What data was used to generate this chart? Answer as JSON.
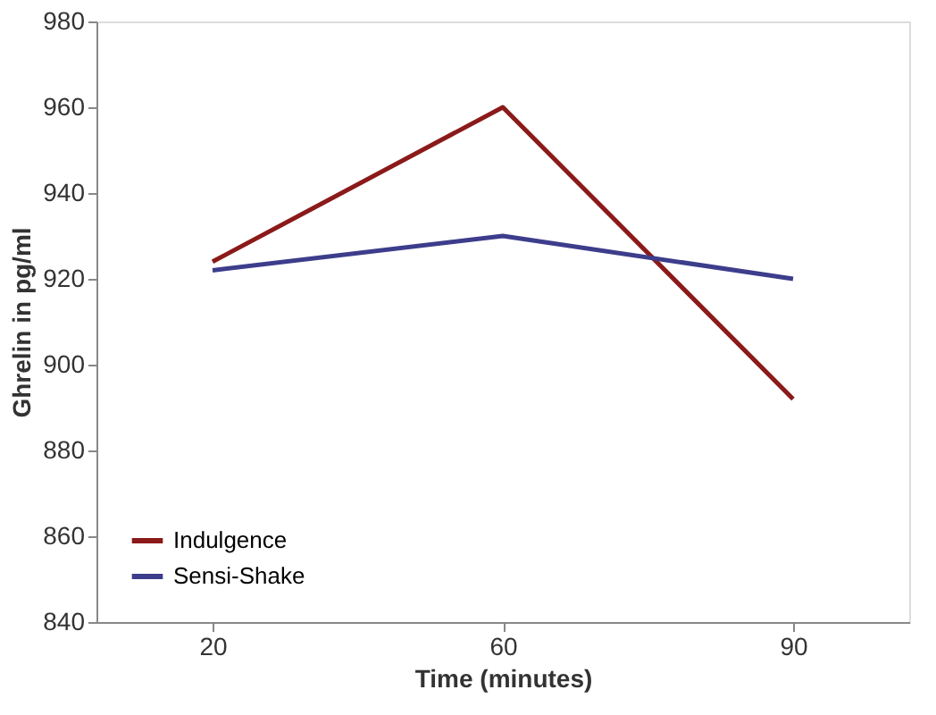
{
  "chart_data": {
    "type": "line",
    "xlabel": "Time (minutes)",
    "ylabel": "Ghrelin in pg/ml",
    "categories": [
      "20",
      "60",
      "90"
    ],
    "series": [
      {
        "name": "Indulgence",
        "color": "#8b1a1a",
        "values": [
          924,
          960,
          892
        ]
      },
      {
        "name": "Sensi-Shake",
        "color": "#3d3d8c",
        "values": [
          922,
          930,
          920
        ]
      }
    ],
    "ylim": [
      840,
      980
    ],
    "yticks": [
      840,
      860,
      880,
      900,
      920,
      940,
      960,
      980
    ],
    "grid": false,
    "legend": "bottom left",
    "marker": "none",
    "line_style": "solid"
  }
}
